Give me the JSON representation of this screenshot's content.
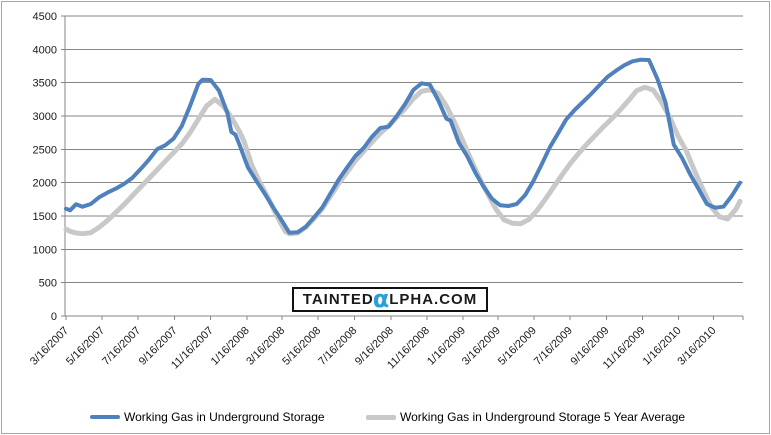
{
  "watermark": {
    "text_before": "TAINTED",
    "alpha_char": "α",
    "text_after": "LPHA.COM",
    "alpha_color": "#2E9FD6"
  },
  "colors": {
    "grid": "#868686",
    "axis": "#868686",
    "chart_border": "#A6A6A6",
    "text": "#1a1a1a",
    "series_blue": "#4F81BD",
    "series_gray": "#C8C8C8"
  },
  "chart_data": {
    "type": "line",
    "title": "",
    "xlabel": "",
    "ylabel": "",
    "ylim": [
      0,
      4500
    ],
    "y_tick_step": 500,
    "y_ticks": [
      0,
      500,
      1000,
      1500,
      2000,
      2500,
      3000,
      3500,
      4000,
      4500
    ],
    "grid": "horizontal",
    "legend_position": "bottom",
    "x_range": {
      "start": "2007-03-16",
      "end": "2010-04-30"
    },
    "x_ticks": {
      "dates": [
        "2007-03-16",
        "2007-05-16",
        "2007-07-16",
        "2007-09-16",
        "2007-11-16",
        "2008-01-16",
        "2008-03-16",
        "2008-05-16",
        "2008-07-16",
        "2008-09-16",
        "2008-11-16",
        "2009-01-16",
        "2009-03-16",
        "2009-05-16",
        "2009-07-16",
        "2009-09-16",
        "2009-11-16",
        "2010-01-16",
        "2010-03-16"
      ],
      "labels": [
        "3/16/2007",
        "5/16/2007",
        "7/16/2007",
        "9/16/2007",
        "11/16/2007",
        "1/16/2008",
        "3/16/2008",
        "5/16/2008",
        "7/16/2008",
        "9/16/2008",
        "11/16/2008",
        "1/16/2009",
        "3/16/2009",
        "5/16/2009",
        "7/16/2009",
        "9/16/2009",
        "11/16/2009",
        "1/16/2010",
        "3/16/2010"
      ]
    },
    "series": [
      {
        "name": "Working Gas in Underground Storage",
        "color": "#4F81BD",
        "stroke_width": 4,
        "points": [
          [
            "2007-03-16",
            1610
          ],
          [
            "2007-03-23",
            1585
          ],
          [
            "2007-04-02",
            1675
          ],
          [
            "2007-04-13",
            1640
          ],
          [
            "2007-04-27",
            1680
          ],
          [
            "2007-05-11",
            1780
          ],
          [
            "2007-05-25",
            1850
          ],
          [
            "2007-06-08",
            1910
          ],
          [
            "2007-06-22",
            1980
          ],
          [
            "2007-07-06",
            2070
          ],
          [
            "2007-07-20",
            2200
          ],
          [
            "2007-08-03",
            2340
          ],
          [
            "2007-08-17",
            2500
          ],
          [
            "2007-08-31",
            2560
          ],
          [
            "2007-09-14",
            2660
          ],
          [
            "2007-09-28",
            2850
          ],
          [
            "2007-10-12",
            3150
          ],
          [
            "2007-10-26",
            3480
          ],
          [
            "2007-11-02",
            3545
          ],
          [
            "2007-11-16",
            3540
          ],
          [
            "2007-11-30",
            3380
          ],
          [
            "2007-12-14",
            3050
          ],
          [
            "2007-12-21",
            2760
          ],
          [
            "2007-12-28",
            2720
          ],
          [
            "2008-01-04",
            2560
          ],
          [
            "2008-01-18",
            2230
          ],
          [
            "2008-02-01",
            2030
          ],
          [
            "2008-02-15",
            1840
          ],
          [
            "2008-02-29",
            1640
          ],
          [
            "2008-03-14",
            1450
          ],
          [
            "2008-03-28",
            1250
          ],
          [
            "2008-04-11",
            1255
          ],
          [
            "2008-04-25",
            1340
          ],
          [
            "2008-05-09",
            1480
          ],
          [
            "2008-05-23",
            1630
          ],
          [
            "2008-06-06",
            1840
          ],
          [
            "2008-06-20",
            2050
          ],
          [
            "2008-07-04",
            2230
          ],
          [
            "2008-07-18",
            2400
          ],
          [
            "2008-08-01",
            2520
          ],
          [
            "2008-08-15",
            2690
          ],
          [
            "2008-08-29",
            2820
          ],
          [
            "2008-09-12",
            2840
          ],
          [
            "2008-09-26",
            3000
          ],
          [
            "2008-10-10",
            3180
          ],
          [
            "2008-10-24",
            3390
          ],
          [
            "2008-11-07",
            3490
          ],
          [
            "2008-11-21",
            3470
          ],
          [
            "2008-12-05",
            3240
          ],
          [
            "2008-12-19",
            2960
          ],
          [
            "2008-12-26",
            2930
          ],
          [
            "2009-01-09",
            2600
          ],
          [
            "2009-01-23",
            2400
          ],
          [
            "2009-02-06",
            2150
          ],
          [
            "2009-02-20",
            1940
          ],
          [
            "2009-03-06",
            1760
          ],
          [
            "2009-03-20",
            1660
          ],
          [
            "2009-04-03",
            1650
          ],
          [
            "2009-04-17",
            1680
          ],
          [
            "2009-05-01",
            1810
          ],
          [
            "2009-05-15",
            2020
          ],
          [
            "2009-05-29",
            2270
          ],
          [
            "2009-06-12",
            2530
          ],
          [
            "2009-06-26",
            2740
          ],
          [
            "2009-07-10",
            2950
          ],
          [
            "2009-07-24",
            3090
          ],
          [
            "2009-08-07",
            3210
          ],
          [
            "2009-08-21",
            3330
          ],
          [
            "2009-09-04",
            3460
          ],
          [
            "2009-09-18",
            3590
          ],
          [
            "2009-10-02",
            3680
          ],
          [
            "2009-10-16",
            3760
          ],
          [
            "2009-10-30",
            3820
          ],
          [
            "2009-11-13",
            3845
          ],
          [
            "2009-11-27",
            3840
          ],
          [
            "2009-12-11",
            3560
          ],
          [
            "2009-12-25",
            3200
          ],
          [
            "2010-01-08",
            2570
          ],
          [
            "2010-01-22",
            2370
          ],
          [
            "2010-02-05",
            2120
          ],
          [
            "2010-02-19",
            1900
          ],
          [
            "2010-03-05",
            1680
          ],
          [
            "2010-03-19",
            1625
          ],
          [
            "2010-04-02",
            1640
          ],
          [
            "2010-04-16",
            1800
          ],
          [
            "2010-04-30",
            2000
          ]
        ]
      },
      {
        "name": "Working Gas in Underground Storage 5 Year Average",
        "color": "#C8C8C8",
        "stroke_width": 5,
        "points": [
          [
            "2007-03-16",
            1300
          ],
          [
            "2007-03-23",
            1270
          ],
          [
            "2007-04-02",
            1245
          ],
          [
            "2007-04-13",
            1235
          ],
          [
            "2007-04-27",
            1250
          ],
          [
            "2007-05-11",
            1330
          ],
          [
            "2007-05-25",
            1430
          ],
          [
            "2007-06-08",
            1550
          ],
          [
            "2007-06-22",
            1670
          ],
          [
            "2007-07-06",
            1800
          ],
          [
            "2007-07-20",
            1930
          ],
          [
            "2007-08-03",
            2060
          ],
          [
            "2007-08-17",
            2190
          ],
          [
            "2007-08-31",
            2320
          ],
          [
            "2007-09-14",
            2450
          ],
          [
            "2007-09-28",
            2580
          ],
          [
            "2007-10-12",
            2750
          ],
          [
            "2007-10-26",
            2950
          ],
          [
            "2007-11-09",
            3150
          ],
          [
            "2007-11-23",
            3250
          ],
          [
            "2007-12-07",
            3150
          ],
          [
            "2007-12-21",
            2980
          ],
          [
            "2008-01-04",
            2760
          ],
          [
            "2008-01-11",
            2630
          ],
          [
            "2008-01-25",
            2250
          ],
          [
            "2008-02-08",
            1990
          ],
          [
            "2008-02-22",
            1760
          ],
          [
            "2008-03-07",
            1500
          ],
          [
            "2008-03-21",
            1270
          ],
          [
            "2008-03-28",
            1235
          ],
          [
            "2008-04-11",
            1245
          ],
          [
            "2008-04-25",
            1330
          ],
          [
            "2008-05-09",
            1460
          ],
          [
            "2008-05-23",
            1610
          ],
          [
            "2008-06-06",
            1800
          ],
          [
            "2008-06-20",
            1990
          ],
          [
            "2008-07-04",
            2160
          ],
          [
            "2008-07-18",
            2330
          ],
          [
            "2008-08-01",
            2470
          ],
          [
            "2008-08-15",
            2610
          ],
          [
            "2008-08-29",
            2740
          ],
          [
            "2008-09-12",
            2850
          ],
          [
            "2008-09-26",
            2980
          ],
          [
            "2008-10-10",
            3110
          ],
          [
            "2008-10-24",
            3260
          ],
          [
            "2008-11-07",
            3370
          ],
          [
            "2008-11-21",
            3395
          ],
          [
            "2008-12-05",
            3340
          ],
          [
            "2008-12-19",
            3150
          ],
          [
            "2009-01-02",
            2900
          ],
          [
            "2009-01-16",
            2620
          ],
          [
            "2009-01-30",
            2340
          ],
          [
            "2009-02-13",
            2070
          ],
          [
            "2009-02-27",
            1830
          ],
          [
            "2009-03-13",
            1600
          ],
          [
            "2009-03-27",
            1440
          ],
          [
            "2009-04-10",
            1390
          ],
          [
            "2009-04-24",
            1385
          ],
          [
            "2009-05-08",
            1450
          ],
          [
            "2009-05-22",
            1590
          ],
          [
            "2009-06-05",
            1760
          ],
          [
            "2009-06-19",
            1940
          ],
          [
            "2009-07-03",
            2120
          ],
          [
            "2009-07-17",
            2290
          ],
          [
            "2009-07-31",
            2440
          ],
          [
            "2009-08-14",
            2580
          ],
          [
            "2009-08-28",
            2710
          ],
          [
            "2009-09-11",
            2840
          ],
          [
            "2009-09-25",
            2960
          ],
          [
            "2009-10-09",
            3090
          ],
          [
            "2009-10-23",
            3230
          ],
          [
            "2009-11-06",
            3380
          ],
          [
            "2009-11-20",
            3430
          ],
          [
            "2009-12-04",
            3390
          ],
          [
            "2009-12-18",
            3210
          ],
          [
            "2010-01-01",
            2980
          ],
          [
            "2010-01-15",
            2700
          ],
          [
            "2010-01-29",
            2480
          ],
          [
            "2010-02-12",
            2180
          ],
          [
            "2010-02-26",
            1900
          ],
          [
            "2010-03-12",
            1640
          ],
          [
            "2010-03-26",
            1490
          ],
          [
            "2010-04-09",
            1455
          ],
          [
            "2010-04-23",
            1600
          ],
          [
            "2010-04-30",
            1720
          ]
        ]
      }
    ]
  },
  "legend": {
    "items": [
      {
        "label": "Working Gas in Underground Storage"
      },
      {
        "label": "Working Gas in Underground Storage 5 Year Average"
      }
    ]
  }
}
